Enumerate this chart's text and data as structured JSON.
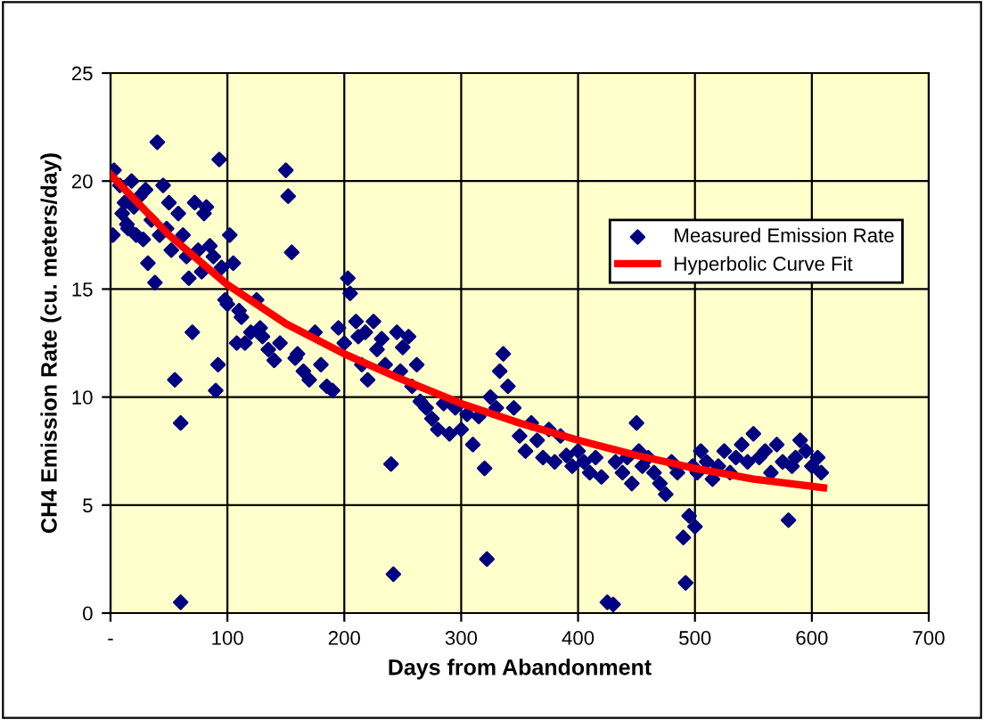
{
  "chart_data": {
    "type": "scatter",
    "xlabel": "Days from Abandonment",
    "ylabel": "CH4 Emission Rate (cu. meters/day)",
    "xlim": [
      0,
      700
    ],
    "xticks": [
      {
        "value": 0,
        "label": "-"
      },
      100,
      200,
      300,
      400,
      500,
      600,
      700
    ],
    "ylim": [
      0,
      25
    ],
    "yticks": [
      0,
      5,
      10,
      15,
      20,
      25
    ],
    "grid": true,
    "legend": "center right",
    "series": [
      {
        "name": "Measured Emission Rate",
        "color": "#000080",
        "marker": "diamond",
        "x": [
          2,
          3,
          8,
          10,
          12,
          14,
          15,
          18,
          20,
          22,
          25,
          28,
          30,
          32,
          35,
          38,
          40,
          42,
          45,
          48,
          50,
          52,
          55,
          58,
          60,
          60,
          62,
          65,
          67,
          70,
          72,
          75,
          78,
          80,
          82,
          85,
          88,
          90,
          92,
          93,
          95,
          98,
          100,
          102,
          105,
          108,
          110,
          112,
          115,
          120,
          125,
          128,
          130,
          135,
          140,
          145,
          150,
          152,
          155,
          158,
          160,
          165,
          170,
          175,
          180,
          185,
          190,
          195,
          200,
          203,
          205,
          210,
          212,
          215,
          218,
          220,
          225,
          228,
          232,
          235,
          240,
          242,
          245,
          248,
          250,
          255,
          258,
          262,
          265,
          270,
          275,
          280,
          285,
          290,
          295,
          300,
          305,
          310,
          315,
          320,
          322,
          325,
          330,
          333,
          336,
          340,
          345,
          350,
          355,
          360,
          365,
          370,
          375,
          380,
          385,
          390,
          395,
          400,
          405,
          410,
          415,
          420,
          425,
          430,
          432,
          438,
          442,
          446,
          450,
          452,
          455,
          460,
          465,
          470,
          475,
          480,
          485,
          490,
          492,
          495,
          498,
          500,
          502,
          505,
          510,
          515,
          520,
          525,
          530,
          535,
          540,
          545,
          550,
          555,
          560,
          565,
          570,
          575,
          580,
          583,
          586,
          590,
          595,
          600,
          605,
          608
        ],
        "values": [
          17.5,
          20.5,
          19.8,
          18.5,
          19,
          18,
          17.8,
          20,
          18.8,
          17.5,
          19.3,
          17.3,
          19.6,
          16.2,
          18.2,
          15.3,
          21.8,
          17.5,
          19.8,
          17.8,
          19,
          16.8,
          10.8,
          18.5,
          8.8,
          0.5,
          17.5,
          16.5,
          15.5,
          13,
          19,
          16.8,
          15.8,
          18.5,
          18.8,
          17,
          16.5,
          10.3,
          11.5,
          21,
          16,
          14.5,
          14.3,
          17.5,
          16.2,
          12.5,
          14,
          13.7,
          12.5,
          13,
          14.5,
          13.2,
          12.8,
          12.2,
          11.7,
          12.5,
          20.5,
          19.3,
          16.7,
          11.8,
          12,
          11.2,
          10.8,
          13,
          11.5,
          10.5,
          10.3,
          13.2,
          12.5,
          15.5,
          14.8,
          13.5,
          12.8,
          11.5,
          13,
          10.8,
          13.5,
          12.2,
          12.7,
          11.5,
          6.9,
          1.8,
          13,
          11.2,
          12.3,
          12.8,
          10.5,
          11.5,
          9.8,
          9.5,
          9,
          8.5,
          9.7,
          8.3,
          9.5,
          8.5,
          9.2,
          7.8,
          9.1,
          6.7,
          2.5,
          10,
          9.5,
          11.2,
          12,
          10.5,
          9.5,
          8.2,
          7.5,
          8.8,
          8,
          7.2,
          8.5,
          7,
          8.2,
          7.3,
          6.8,
          7.5,
          7,
          6.5,
          7.2,
          6.3,
          0.5,
          0.4,
          7,
          6.5,
          7.2,
          6,
          8.8,
          7.5,
          6.8,
          7.2,
          6.5,
          6,
          5.5,
          7,
          6.5,
          3.5,
          1.4,
          4.5,
          6.8,
          4,
          6.5,
          7.5,
          7,
          6.2,
          6.8,
          7.5,
          6.5,
          7.2,
          7.8,
          7,
          8.3,
          7.2,
          7.5,
          6.5,
          7.8,
          7,
          4.3,
          6.8,
          7.2,
          8,
          7.5,
          6.8,
          7.2,
          6.5
        ]
      },
      {
        "name": "Hyperbolic Curve Fit",
        "type": "line",
        "color": "#ff0000",
        "marker": "none",
        "x": [
          0,
          50,
          100,
          150,
          200,
          250,
          300,
          350,
          400,
          450,
          500,
          550,
          610
        ],
        "values": [
          20.3,
          17.5,
          15.2,
          13.4,
          12,
          10.8,
          9.7,
          8.8,
          8,
          7.3,
          6.7,
          6.2,
          5.8
        ]
      }
    ]
  }
}
